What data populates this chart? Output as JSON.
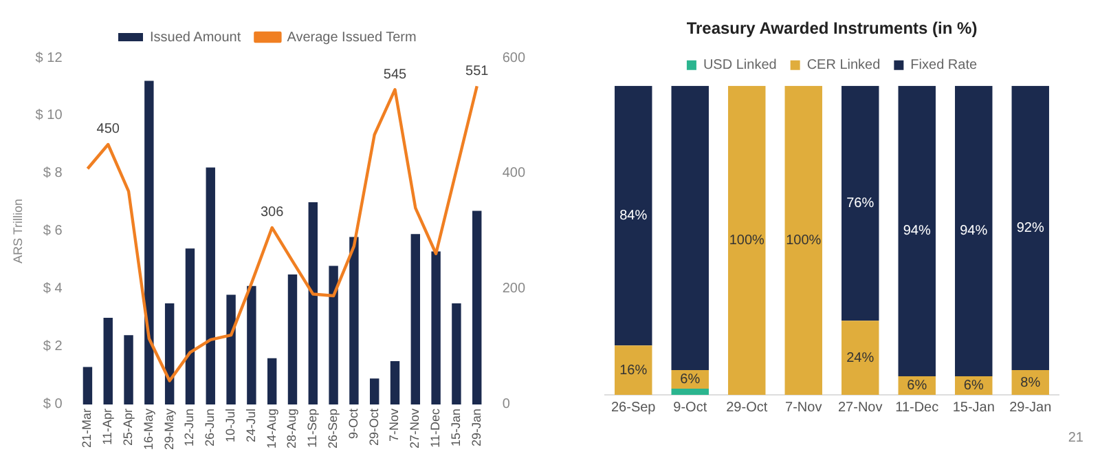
{
  "chart_data": [
    {
      "type": "bar",
      "ylabel": "ARS Trillion",
      "categories": [
        "21-Mar",
        "11-Apr",
        "25-Apr",
        "16-May",
        "29-May",
        "12-Jun",
        "26-Jun",
        "10-Jul",
        "24-Jul",
        "14-Aug",
        "28-Aug",
        "11-Sep",
        "26-Sep",
        "9-Oct",
        "29-Oct",
        "7-Nov",
        "27-Nov",
        "11-Dec",
        "15-Jan",
        "29-Jan"
      ],
      "series": [
        {
          "name": "Issued Amount",
          "type": "bar",
          "color": "#1b2a4e",
          "values": [
            1.3,
            3.0,
            2.4,
            11.2,
            3.5,
            5.4,
            8.2,
            3.8,
            4.1,
            1.6,
            4.5,
            7.0,
            4.8,
            5.8,
            0.9,
            1.5,
            5.9,
            5.3,
            3.5,
            6.7
          ]
        },
        {
          "name": "Average Issued Term",
          "type": "line",
          "axis": "y2",
          "color": "#f07f22",
          "values": [
            408,
            450,
            369,
            114,
            41,
            90,
            112,
            120,
            210,
            306,
            248,
            191,
            188,
            274,
            467,
            545,
            340,
            261,
            406,
            551
          ],
          "value_labels": [
            null,
            "450",
            null,
            null,
            null,
            null,
            null,
            null,
            null,
            "306",
            null,
            null,
            null,
            null,
            null,
            "545",
            null,
            null,
            null,
            "551"
          ]
        }
      ],
      "ylim": [
        0,
        12
      ],
      "yticks": [
        {
          "value": 0,
          "label": "$ 0"
        },
        {
          "value": 2,
          "label": "$ 2"
        },
        {
          "value": 4,
          "label": "$ 4"
        },
        {
          "value": 6,
          "label": "$ 6"
        },
        {
          "value": 8,
          "label": "$ 8"
        },
        {
          "value": 10,
          "label": "$ 10"
        },
        {
          "value": 12,
          "label": "$ 12"
        }
      ],
      "y2lim": [
        0,
        600
      ],
      "y2ticks": [
        0,
        200,
        400,
        600
      ],
      "grid": false,
      "legend": "top",
      "marker": "none",
      "line_style": "solid"
    },
    {
      "type": "bar",
      "title": "Treasury Awarded Instruments (in %)",
      "stacked": true,
      "categories": [
        "26-Sep",
        "9-Oct",
        "29-Oct",
        "7-Nov",
        "27-Nov",
        "11-Dec",
        "15-Jan",
        "29-Jan"
      ],
      "series": [
        {
          "name": "USD Linked",
          "color": "#2bb58f",
          "values": [
            0,
            2,
            0,
            0,
            0,
            0,
            0,
            0
          ],
          "value_labels": [
            null,
            null,
            null,
            null,
            null,
            null,
            null,
            null
          ]
        },
        {
          "name": "CER Linked",
          "color": "#e0ad3c",
          "values": [
            16,
            6,
            100,
            100,
            24,
            6,
            6,
            8
          ],
          "value_labels": [
            "16%",
            "6%",
            "100%",
            "100%",
            "24%",
            "6%",
            "6%",
            "8%"
          ]
        },
        {
          "name": "Fixed Rate",
          "color": "#1b2a4e",
          "values": [
            84,
            92,
            0,
            0,
            76,
            94,
            94,
            92
          ],
          "value_labels": [
            "84%",
            null,
            null,
            null,
            "76%",
            "94%",
            "94%",
            "92%"
          ]
        }
      ],
      "ylim": [
        0,
        100
      ],
      "tick_labels": "x",
      "grid": false,
      "legend": "top",
      "annotations": [
        "21"
      ]
    }
  ]
}
